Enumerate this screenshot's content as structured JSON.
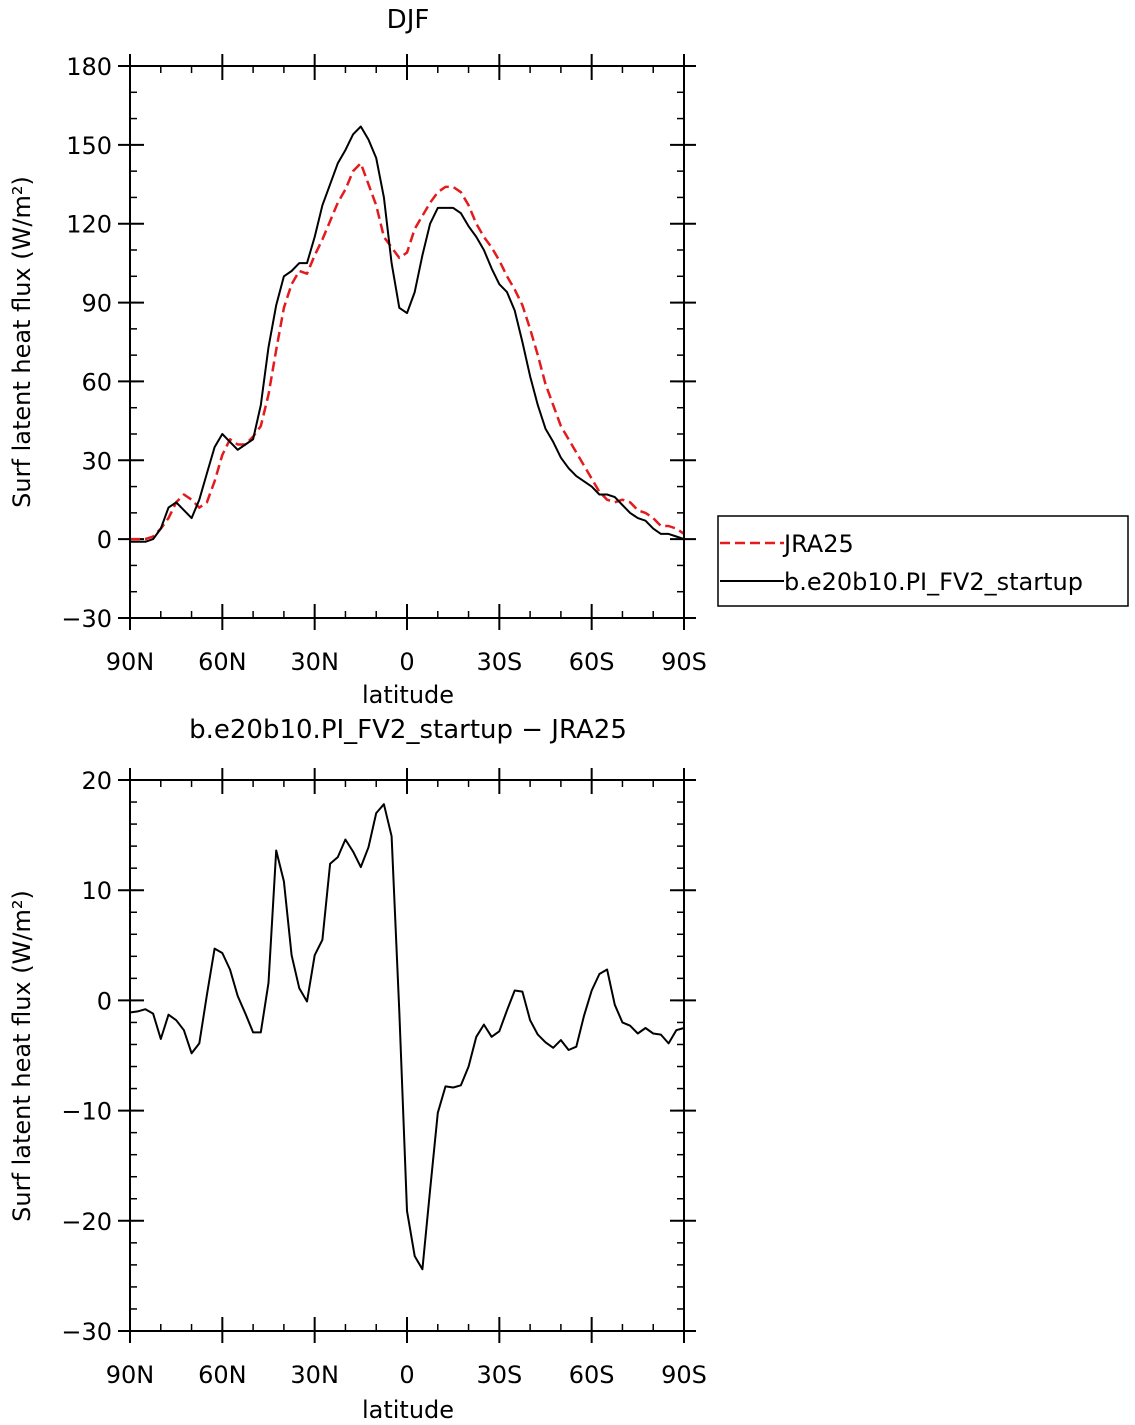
{
  "chart_data": [
    {
      "type": "line",
      "title": "DJF",
      "xlabel": "latitude",
      "ylabel": "Surf latent heat flux (W/m²)",
      "xlim": [
        90,
        -90
      ],
      "ylim": [
        -30,
        180
      ],
      "x_ticks": [
        {
          "value": 90,
          "label": "90N"
        },
        {
          "value": 60,
          "label": "60N"
        },
        {
          "value": 30,
          "label": "30N"
        },
        {
          "value": 0,
          "label": "0"
        },
        {
          "value": -30,
          "label": "30S"
        },
        {
          "value": -60,
          "label": "60S"
        },
        {
          "value": -90,
          "label": "90S"
        }
      ],
      "y_ticks": [
        {
          "value": 180,
          "label": "180"
        },
        {
          "value": 150,
          "label": "150"
        },
        {
          "value": 120,
          "label": "120"
        },
        {
          "value": 90,
          "label": "90"
        },
        {
          "value": 60,
          "label": "60"
        },
        {
          "value": 30,
          "label": "30"
        },
        {
          "value": 0,
          "label": "0"
        },
        {
          "value": -30,
          "label": "−30"
        }
      ],
      "legend_position": "right, outside plot",
      "series": [
        {
          "name": "JRA25",
          "color": "#e41a1c",
          "dash": "dashed",
          "x": [
            90,
            87.5,
            85,
            82.5,
            80,
            77.5,
            75,
            72.5,
            70,
            67.5,
            65,
            62.5,
            60,
            57.5,
            55,
            52.5,
            50,
            47.5,
            45,
            42.5,
            40,
            37.5,
            35,
            32.5,
            30,
            27.5,
            25,
            22.5,
            20,
            17.5,
            15,
            12.5,
            10,
            7.5,
            5,
            2.5,
            0,
            -2.5,
            -5,
            -7.5,
            -10,
            -12.5,
            -15,
            -17.5,
            -20,
            -22.5,
            -25,
            -27.5,
            -30,
            -32.5,
            -35,
            -37.5,
            -40,
            -42.5,
            -45,
            -47.5,
            -50,
            -52.5,
            -55,
            -57.5,
            -60,
            -62.5,
            -65,
            -67.5,
            -70,
            -72.5,
            -75,
            -77.5,
            -80,
            -82.5,
            -85,
            -87.5,
            -90
          ],
          "values": [
            0,
            0,
            0,
            1,
            4,
            8,
            14,
            17,
            15,
            12,
            14,
            22,
            32,
            38,
            36,
            36,
            39,
            43,
            55,
            72,
            88,
            97,
            102,
            101,
            108,
            114,
            121,
            128,
            133,
            140,
            143,
            135,
            127,
            115,
            111,
            107,
            109,
            118,
            123,
            128,
            132,
            134,
            134,
            132,
            127,
            120,
            115,
            111,
            106,
            100,
            95,
            89,
            80,
            70,
            59,
            51,
            43,
            38,
            33,
            28,
            23,
            18,
            15,
            14,
            15,
            14,
            11,
            10,
            8,
            5,
            5,
            4,
            2
          ]
        },
        {
          "name": "b.e20b10.PI_FV2_startup",
          "color": "#000000",
          "dash": "solid",
          "x": [
            90,
            87.5,
            85,
            82.5,
            80,
            77.5,
            75,
            72.5,
            70,
            67.5,
            65,
            62.5,
            60,
            57.5,
            55,
            52.5,
            50,
            47.5,
            45,
            42.5,
            40,
            37.5,
            35,
            32.5,
            30,
            27.5,
            25,
            22.5,
            20,
            17.5,
            15,
            12.5,
            10,
            7.5,
            5,
            2.5,
            0,
            -2.5,
            -5,
            -7.5,
            -10,
            -12.5,
            -15,
            -17.5,
            -20,
            -22.5,
            -25,
            -27.5,
            -30,
            -32.5,
            -35,
            -37.5,
            -40,
            -42.5,
            -45,
            -47.5,
            -50,
            -52.5,
            -55,
            -57.5,
            -60,
            -62.5,
            -65,
            -67.5,
            -70,
            -72.5,
            -75,
            -77.5,
            -80,
            -82.5,
            -85,
            -87.5,
            -90
          ],
          "values": [
            -1,
            -1,
            -1,
            0,
            4,
            12,
            14,
            11,
            8,
            15,
            25,
            35,
            40,
            37,
            34,
            36,
            38,
            51,
            73,
            89,
            100,
            102,
            105,
            105,
            115,
            127,
            135,
            143,
            148,
            154,
            157,
            152,
            145,
            130,
            105,
            88,
            86,
            94,
            108,
            120,
            126,
            126,
            126,
            124,
            119,
            115,
            110,
            103,
            97,
            94,
            87,
            75,
            62,
            51,
            42,
            37,
            31,
            27,
            24,
            22,
            20,
            17,
            17,
            16,
            13,
            10,
            8,
            7,
            4,
            2,
            2,
            1,
            0
          ]
        }
      ]
    },
    {
      "type": "line",
      "title": "b.e20b10.PI_FV2_startup − JRA25",
      "xlabel": "latitude",
      "ylabel": "Surf latent heat flux (W/m²)",
      "xlim": [
        90,
        -90
      ],
      "ylim": [
        -30,
        20
      ],
      "x_ticks": [
        {
          "value": 90,
          "label": "90N"
        },
        {
          "value": 60,
          "label": "60N"
        },
        {
          "value": 30,
          "label": "30N"
        },
        {
          "value": 0,
          "label": "0"
        },
        {
          "value": -30,
          "label": "30S"
        },
        {
          "value": -60,
          "label": "60S"
        },
        {
          "value": -90,
          "label": "90S"
        }
      ],
      "y_ticks": [
        {
          "value": 20,
          "label": "20"
        },
        {
          "value": 10,
          "label": "10"
        },
        {
          "value": 0,
          "label": "0"
        },
        {
          "value": -10,
          "label": "−10"
        },
        {
          "value": -20,
          "label": "−20"
        },
        {
          "value": -30,
          "label": "−30"
        }
      ],
      "series": [
        {
          "color": "#000000",
          "dash": "solid",
          "x": [
            90,
            87.5,
            85,
            82.5,
            80,
            77.5,
            75,
            72.5,
            70,
            67.5,
            65,
            62.5,
            60,
            57.5,
            55,
            52.5,
            50,
            47.5,
            45,
            42.5,
            40,
            37.5,
            35,
            32.5,
            30,
            27.5,
            25,
            22.5,
            20,
            17.5,
            15,
            12.5,
            10,
            7.5,
            5,
            2.5,
            0,
            -2.5,
            -5,
            -7.5,
            -10,
            -12.5,
            -15,
            -17.5,
            -20,
            -22.5,
            -25,
            -27.5,
            -30,
            -32.5,
            -35,
            -37.5,
            -40,
            -42.5,
            -45,
            -47.5,
            -50,
            -52.5,
            -55,
            -57.5,
            -60,
            -62.5,
            -65,
            -67.5,
            -70,
            -72.5,
            -75,
            -77.5,
            -80,
            -82.5,
            -85,
            -87.5,
            -90
          ],
          "values": [
            -1.1,
            -1,
            -0.8,
            -1.2,
            -3.5,
            -1.3,
            -1.8,
            -2.7,
            -4.8,
            -3.9,
            0.5,
            4.7,
            4.3,
            2.8,
            0.4,
            -1.2,
            -2.9,
            -2.9,
            1.6,
            13.6,
            10.8,
            4.1,
            1.1,
            -0.1,
            4.1,
            5.5,
            12.4,
            13,
            14.6,
            13.5,
            12.1,
            13.9,
            17,
            17.8,
            14.9,
            -1,
            -19.1,
            -23.2,
            -24.4,
            -17.2,
            -10.2,
            -7.8,
            -7.9,
            -7.7,
            -6,
            -3.3,
            -2.2,
            -3.3,
            -2.8,
            -0.9,
            0.9,
            0.8,
            -1.8,
            -3.1,
            -3.8,
            -4.3,
            -3.6,
            -4.5,
            -4.2,
            -1.4,
            0.9,
            2.4,
            2.8,
            -0.4,
            -2,
            -2.3,
            -3,
            -2.5,
            -3,
            -3.1,
            -3.9,
            -2.7,
            -2.5
          ]
        }
      ]
    }
  ]
}
